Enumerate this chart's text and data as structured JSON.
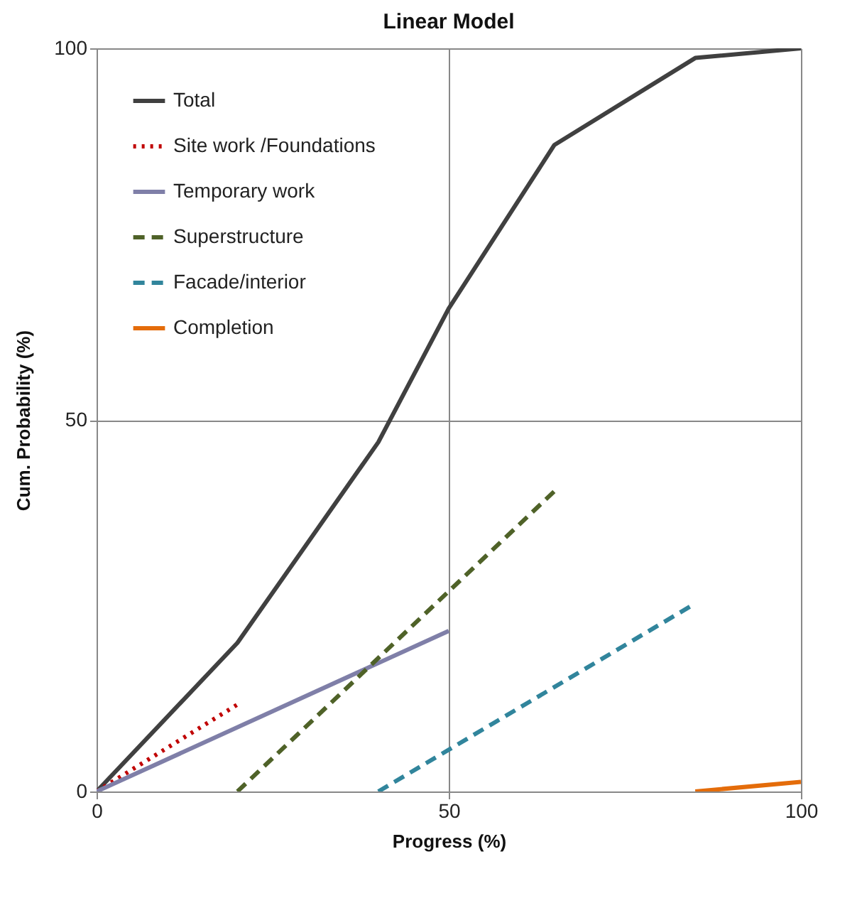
{
  "chart_data": {
    "type": "line",
    "title": "Linear Model",
    "xlabel": "Progress (%)",
    "ylabel": "Cum. Probability (%)",
    "xlim": [
      0,
      100
    ],
    "ylim": [
      0,
      100
    ],
    "xticks": [
      0,
      50,
      100
    ],
    "yticks": [
      0,
      50,
      100
    ],
    "grid": true,
    "legend": "top left",
    "marker": "none",
    "series": [
      {
        "name": "Total",
        "color": "#404040",
        "line_style": "solid",
        "x": [
          0,
          20,
          40,
          50,
          65,
          85,
          100
        ],
        "values": [
          0,
          20,
          47,
          65,
          87,
          98.7,
          100
        ]
      },
      {
        "name": "Site work /Foundations",
        "color": "#c00000",
        "line_style": "dotted",
        "x": [
          0,
          20
        ],
        "values": [
          0,
          11.7
        ]
      },
      {
        "name": "Temporary work",
        "color": "#7f7fa8",
        "line_style": "solid",
        "x": [
          0,
          50
        ],
        "values": [
          0,
          21.6
        ]
      },
      {
        "name": "Superstructure",
        "color": "#4f6228",
        "line_style": "dashed",
        "x": [
          20,
          65
        ],
        "values": [
          0,
          40.4
        ]
      },
      {
        "name": "Facade/interior",
        "color": "#31859c",
        "line_style": "dashed",
        "x": [
          40,
          85
        ],
        "values": [
          0,
          25.3
        ]
      },
      {
        "name": "Completion",
        "color": "#e46c0a",
        "line_style": "solid",
        "x": [
          85,
          100
        ],
        "values": [
          0,
          1.3
        ]
      }
    ]
  }
}
